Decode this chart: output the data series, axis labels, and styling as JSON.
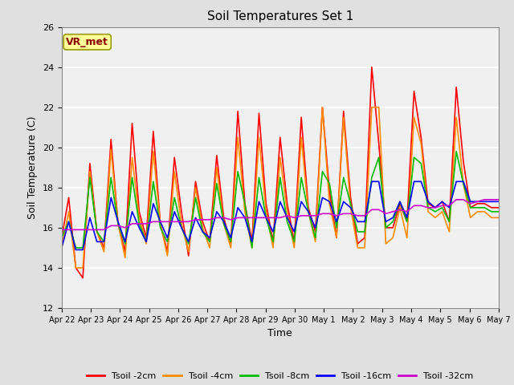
{
  "title": "Soil Temperatures Set 1",
  "xlabel": "Time",
  "ylabel": "Soil Temperature (C)",
  "ylim": [
    12,
    26
  ],
  "yticks": [
    12,
    14,
    16,
    18,
    20,
    22,
    24,
    26
  ],
  "annotation_text": "VR_met",
  "annotation_color": "#8B0000",
  "annotation_bg": "#FFFF99",
  "annotation_edge": "#999900",
  "fig_bg": "#E0E0E0",
  "plot_bg": "#F0F0F0",
  "grid_color": "white",
  "colors": {
    "Tsoil -2cm": "#FF0000",
    "Tsoil -4cm": "#FF8C00",
    "Tsoil -8cm": "#00BB00",
    "Tsoil -16cm": "#0000FF",
    "Tsoil -32cm": "#CC00CC"
  },
  "x_labels": [
    "Apr 22",
    "Apr 23",
    "Apr 24",
    "Apr 25",
    "Apr 26",
    "Apr 27",
    "Apr 28",
    "Apr 29",
    "Apr 30",
    "May 1",
    "May 2",
    "May 3",
    "May 4",
    "May 5",
    "May 6",
    "May 7"
  ],
  "x_tick_positions": [
    0,
    1,
    2,
    3,
    4,
    5,
    6,
    7,
    8,
    9,
    10,
    11,
    12,
    13,
    14,
    15
  ],
  "tsoil_2cm": [
    15.5,
    17.5,
    14.0,
    13.5,
    19.2,
    15.8,
    15.0,
    20.4,
    16.2,
    14.8,
    21.2,
    16.8,
    15.5,
    20.8,
    16.2,
    14.8,
    19.5,
    16.8,
    14.6,
    18.3,
    16.3,
    15.3,
    19.6,
    16.5,
    15.2,
    21.8,
    17.2,
    15.3,
    21.7,
    17.2,
    15.3,
    20.5,
    17.2,
    15.3,
    21.5,
    17.0,
    15.8,
    22.0,
    17.8,
    15.5,
    21.8,
    17.5,
    15.2,
    15.5,
    24.0,
    20.2,
    16.0,
    16.0,
    17.2,
    16.3,
    22.8,
    20.5,
    17.2,
    17.0,
    17.3,
    16.3,
    23.0,
    19.3,
    17.0,
    17.2,
    17.2,
    17.0,
    17.0
  ],
  "tsoil_4cm": [
    15.0,
    16.8,
    14.0,
    14.0,
    18.8,
    15.8,
    14.8,
    19.9,
    16.2,
    14.5,
    19.5,
    16.5,
    15.2,
    19.8,
    16.2,
    14.6,
    18.8,
    16.2,
    14.8,
    18.0,
    16.0,
    15.0,
    19.0,
    16.2,
    15.0,
    20.5,
    16.8,
    15.0,
    20.5,
    16.8,
    15.0,
    19.5,
    16.8,
    15.0,
    20.5,
    16.8,
    15.3,
    22.0,
    17.2,
    15.5,
    21.5,
    17.0,
    15.0,
    15.0,
    22.0,
    22.0,
    15.2,
    15.5,
    17.0,
    15.5,
    21.5,
    20.2,
    16.8,
    16.5,
    16.8,
    15.8,
    21.5,
    18.2,
    16.5,
    16.8,
    16.8,
    16.5,
    16.5
  ],
  "tsoil_8cm": [
    15.5,
    16.3,
    15.0,
    15.0,
    18.5,
    15.8,
    15.3,
    18.5,
    16.2,
    15.2,
    18.5,
    16.2,
    15.3,
    18.3,
    16.0,
    15.3,
    17.5,
    16.0,
    15.2,
    17.5,
    15.8,
    15.3,
    18.2,
    16.2,
    15.3,
    18.8,
    17.2,
    15.0,
    18.5,
    16.5,
    15.3,
    18.5,
    16.3,
    15.3,
    18.5,
    16.8,
    15.5,
    18.8,
    18.2,
    16.0,
    18.5,
    17.2,
    15.8,
    15.8,
    18.5,
    19.5,
    16.0,
    16.3,
    17.3,
    16.3,
    19.5,
    19.2,
    17.0,
    16.8,
    17.0,
    16.3,
    19.8,
    18.2,
    17.0,
    17.0,
    17.0,
    16.8,
    16.8
  ],
  "tsoil_16cm": [
    15.0,
    16.3,
    14.9,
    14.9,
    16.5,
    15.3,
    15.3,
    17.5,
    16.3,
    15.3,
    16.8,
    16.0,
    15.3,
    17.2,
    16.3,
    15.5,
    16.8,
    16.0,
    15.3,
    16.5,
    15.8,
    15.5,
    16.8,
    16.3,
    15.5,
    17.0,
    16.5,
    15.3,
    17.3,
    16.5,
    15.8,
    17.3,
    16.5,
    15.8,
    17.3,
    16.8,
    16.0,
    17.5,
    17.3,
    16.3,
    17.3,
    17.0,
    16.3,
    16.3,
    18.3,
    18.3,
    16.3,
    16.5,
    17.3,
    16.5,
    18.3,
    18.3,
    17.3,
    17.0,
    17.3,
    17.0,
    18.3,
    18.3,
    17.3,
    17.3,
    17.3,
    17.3,
    17.3
  ],
  "tsoil_32cm": [
    15.9,
    15.9,
    15.9,
    15.9,
    15.9,
    15.9,
    15.9,
    16.1,
    16.1,
    16.0,
    16.2,
    16.2,
    16.2,
    16.3,
    16.3,
    16.3,
    16.3,
    16.3,
    16.3,
    16.4,
    16.4,
    16.4,
    16.5,
    16.5,
    16.4,
    16.5,
    16.5,
    16.5,
    16.5,
    16.5,
    16.5,
    16.5,
    16.6,
    16.5,
    16.6,
    16.6,
    16.6,
    16.7,
    16.7,
    16.6,
    16.7,
    16.7,
    16.6,
    16.6,
    16.9,
    16.9,
    16.7,
    16.8,
    16.9,
    16.8,
    17.1,
    17.1,
    17.0,
    17.0,
    17.1,
    17.1,
    17.4,
    17.4,
    17.2,
    17.3,
    17.4,
    17.4,
    17.4
  ]
}
